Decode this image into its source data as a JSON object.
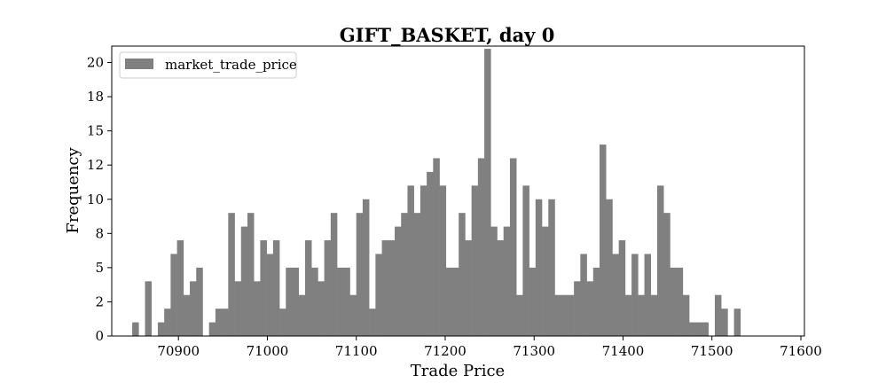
{
  "chart_data": {
    "type": "bar",
    "title": "GIFT_BASKET, day 0",
    "xlabel": "Trade Price",
    "ylabel": "Frequency",
    "legend": {
      "position": "top-left",
      "entries": [
        "market_trade_price"
      ]
    },
    "grid": false,
    "bar_color": "#808080",
    "xlim": [
      70825,
      71604
    ],
    "ylim": [
      0,
      21.2
    ],
    "xticks": [
      70900,
      71000,
      71100,
      71200,
      71300,
      71400,
      71500,
      71600
    ],
    "xtick_labels": [
      "70900",
      "71000",
      "71100",
      "71200",
      "71300",
      "71400",
      "71500",
      "71600"
    ],
    "yticks": [
      0,
      2.5,
      5,
      7.5,
      10,
      12.5,
      15,
      17.5,
      20
    ],
    "ytick_labels": [
      "0",
      "2",
      "5",
      "8",
      "10",
      "12",
      "15",
      "18",
      "20"
    ],
    "bin_start": 70848,
    "bin_width": 7.2,
    "series": [
      {
        "name": "market_trade_price",
        "values": [
          1,
          0,
          4,
          0,
          1,
          2,
          6,
          7,
          3,
          4,
          5,
          0,
          1,
          2,
          2,
          9,
          4,
          8,
          9,
          4,
          7,
          6,
          7,
          2,
          5,
          5,
          3,
          7,
          5,
          4,
          7,
          9,
          5,
          5,
          3,
          9,
          10,
          2,
          6,
          7,
          7,
          8,
          9,
          11,
          9,
          11,
          12,
          13,
          11,
          5,
          5,
          9,
          7,
          11,
          13,
          21,
          8,
          7,
          8,
          13,
          3,
          11,
          5,
          10,
          8,
          10,
          3,
          3,
          3,
          4,
          6,
          4,
          5,
          14,
          10,
          6,
          7,
          3,
          6,
          3,
          6,
          3,
          11,
          9,
          5,
          5,
          3,
          1,
          1,
          1,
          0,
          3,
          2,
          0,
          2
        ]
      }
    ]
  }
}
